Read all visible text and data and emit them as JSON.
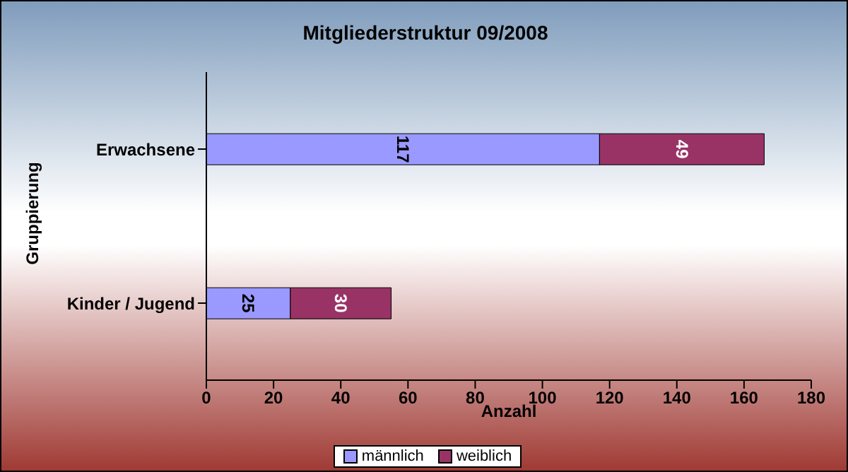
{
  "chart_data": {
    "type": "bar",
    "orientation": "horizontal",
    "stacked": true,
    "title": "Mitgliederstruktur 09/2008",
    "xlabel": "Anzahl",
    "ylabel": "Gruppierung",
    "categories": [
      "Erwachsene",
      "Kinder / Jugend"
    ],
    "series": [
      {
        "name": "männlich",
        "color": "#9999ff",
        "values": [
          117,
          25
        ]
      },
      {
        "name": "weiblich",
        "color": "#993366",
        "values": [
          49,
          30
        ]
      }
    ],
    "xlim": [
      0,
      180
    ],
    "xticks": [
      0,
      20,
      40,
      60,
      80,
      100,
      120,
      140,
      160,
      180
    ],
    "data_labels": true,
    "legend": "bottom",
    "grid": false
  }
}
